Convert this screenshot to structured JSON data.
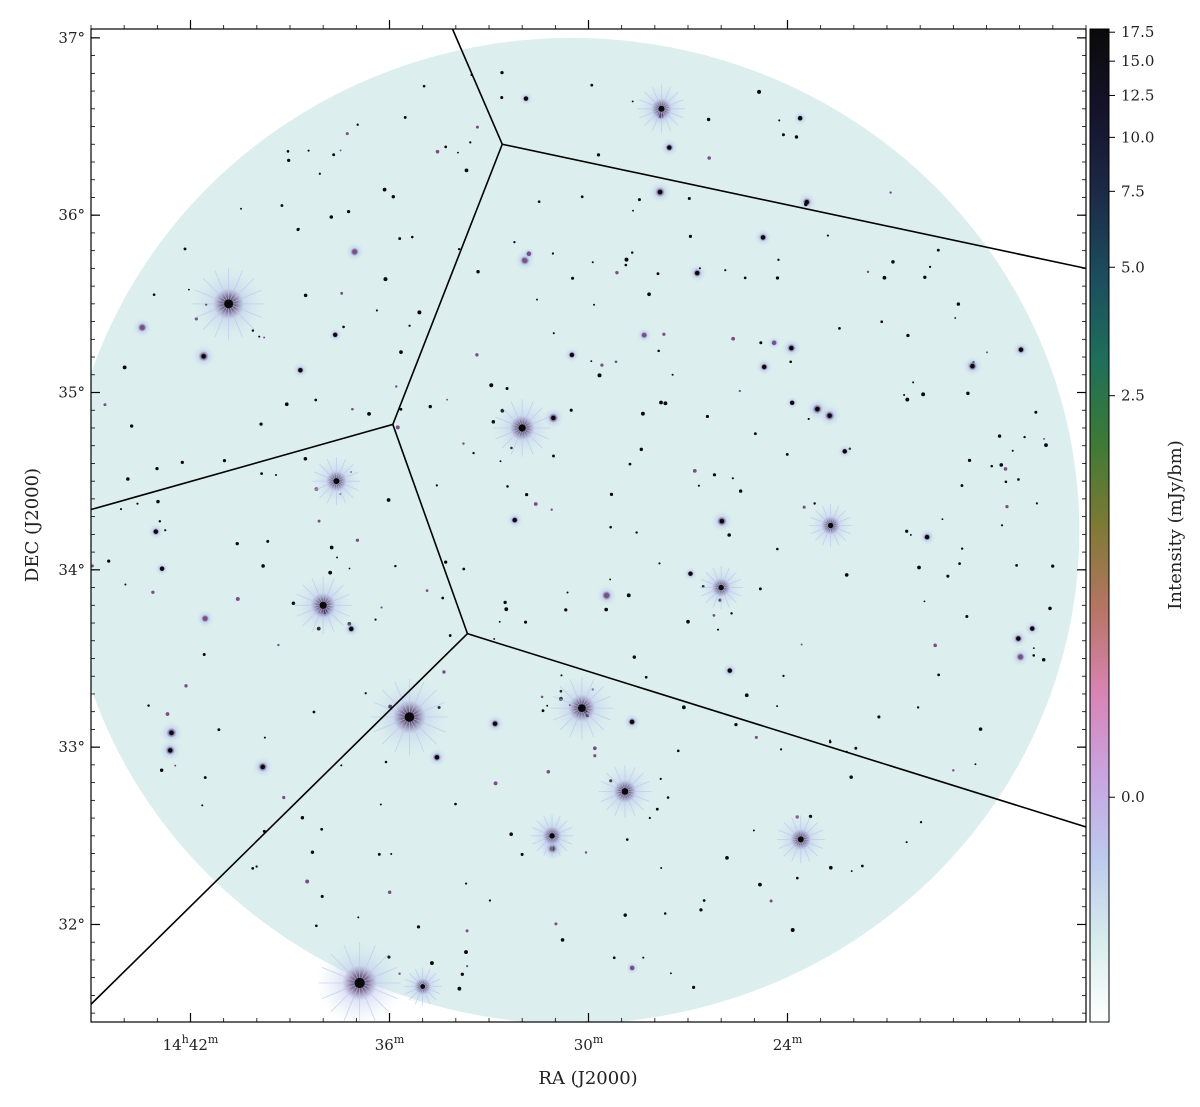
{
  "chart_data": {
    "type": "heatmap",
    "xlabel": "RA (J2000)",
    "ylabel": "DEC (J2000)",
    "x_axis_unit": "RA minutes (h:m)",
    "y_axis_unit": "degrees",
    "xlim": [
      45.0,
      15.0
    ],
    "ylim": [
      31.45,
      37.05
    ],
    "x_ticks": [
      {
        "value": 42,
        "label_main": "14",
        "label_h": "h",
        "label_m": "42",
        "label_sup": "m"
      },
      {
        "value": 36,
        "label_main": "36",
        "label_sup": "m"
      },
      {
        "value": 30,
        "label_main": "30",
        "label_sup": "m"
      },
      {
        "value": 24,
        "label_main": "24",
        "label_sup": "m"
      }
    ],
    "y_ticks": [
      {
        "value": 32,
        "label": "32°"
      },
      {
        "value": 33,
        "label": "33°"
      },
      {
        "value": 34,
        "label": "34°"
      },
      {
        "value": 35,
        "label": "35°"
      },
      {
        "value": 36,
        "label": "36°"
      },
      {
        "value": 37,
        "label": "37°"
      }
    ],
    "field": {
      "shape": "circle",
      "center_ra_min": 30.5,
      "center_dec_deg": 34.22,
      "radius_ra_min": 15.3,
      "radius_dec_deg": 2.78
    },
    "colorbar": {
      "label": "Intensity (mJy/bm)",
      "range": [
        -0.9,
        17.8
      ],
      "scale": "asinh",
      "ticks": [
        "0.0",
        "2.5",
        "5.0",
        "7.5",
        "10.0",
        "12.5",
        "15.0",
        "17.5"
      ],
      "tick_values": [
        0.0,
        2.5,
        5.0,
        7.5,
        10.0,
        12.5,
        15.0,
        17.5
      ],
      "colormap": [
        "#ffffff",
        "#d6ecec",
        "#bcc9ee",
        "#c9a3e0",
        "#d983b3",
        "#b67563",
        "#7e7a34",
        "#3d7a35",
        "#1e6f5a",
        "#1c4d5e",
        "#1c2a48",
        "#15132b",
        "#0a0a0a"
      ]
    },
    "tessellation_segments_radec": [
      [
        [
          34.1,
          37.05
        ],
        [
          32.6,
          36.4
        ]
      ],
      [
        [
          32.6,
          36.4
        ],
        [
          15.0,
          35.7
        ]
      ],
      [
        [
          32.6,
          36.4
        ],
        [
          35.9,
          34.82
        ]
      ],
      [
        [
          35.9,
          34.82
        ],
        [
          45.0,
          34.34
        ]
      ],
      [
        [
          35.9,
          34.82
        ],
        [
          33.65,
          33.64
        ]
      ],
      [
        [
          33.65,
          33.64
        ],
        [
          15.0,
          32.55
        ]
      ],
      [
        [
          33.65,
          33.64
        ],
        [
          45.0,
          31.55
        ]
      ]
    ],
    "bright_sources_radec": [
      [
        40.85,
        35.5,
        1.5
      ],
      [
        35.4,
        33.17,
        1.6
      ],
      [
        30.2,
        33.22,
        1.3
      ],
      [
        36.9,
        31.67,
        1.7
      ],
      [
        32.0,
        34.8,
        1.2
      ],
      [
        28.9,
        32.75,
        1.1
      ],
      [
        38.0,
        33.8,
        1.2
      ],
      [
        37.6,
        34.5,
        1.0
      ],
      [
        23.6,
        32.48,
        1.0
      ],
      [
        22.7,
        34.25,
        0.9
      ],
      [
        26.0,
        33.9,
        0.9
      ],
      [
        27.8,
        36.6,
        1.0
      ],
      [
        31.1,
        32.5,
        0.9
      ],
      [
        35.0,
        31.65,
        0.8
      ]
    ],
    "colors": {
      "background_field": "#dcefee",
      "lines": "#000000",
      "source_core": "#0a0a0a",
      "source_halo": "#b9c4ee"
    }
  }
}
